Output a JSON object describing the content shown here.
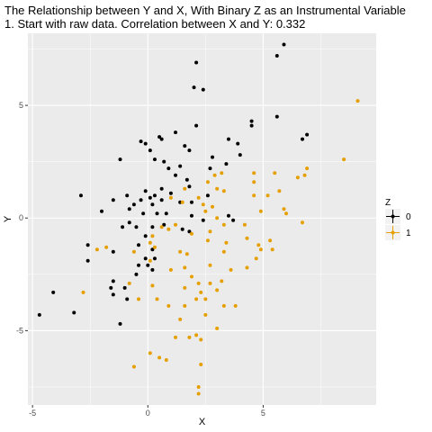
{
  "chart_data": {
    "type": "scatter",
    "title": "The Relationship between Y and X, With Binary Z as an Instrumental Variable",
    "subtitle": "1. Start with raw data. Correlation between X and Y: 0.332",
    "xlabel": "X",
    "ylabel": "Y",
    "xlim": [
      -5.2,
      9.9
    ],
    "ylim": [
      -8.3,
      8.2
    ],
    "xticks": [
      -5,
      0,
      5
    ],
    "yticks": [
      -5,
      0,
      5
    ],
    "grid": true,
    "legend": {
      "title": "Z",
      "position": "right"
    },
    "series": [
      {
        "name": "0",
        "color": "#000000",
        "points": [
          [
            5.9,
            7.7
          ],
          [
            5.6,
            7.2
          ],
          [
            2.1,
            6.9
          ],
          [
            2.0,
            5.8
          ],
          [
            2.4,
            5.7
          ],
          [
            5.6,
            4.5
          ],
          [
            4.5,
            4.3
          ],
          [
            4.5,
            4.1
          ],
          [
            6.9,
            3.7
          ],
          [
            6.7,
            3.5
          ],
          [
            2.1,
            4.1
          ],
          [
            1.2,
            3.8
          ],
          [
            0.5,
            3.6
          ],
          [
            0.6,
            3.5
          ],
          [
            -0.3,
            3.4
          ],
          [
            -0.1,
            3.3
          ],
          [
            3.5,
            3.5
          ],
          [
            3.9,
            3.3
          ],
          [
            1.6,
            3.2
          ],
          [
            4.0,
            2.8
          ],
          [
            1.8,
            3.0
          ],
          [
            0.1,
            3.0
          ],
          [
            0.3,
            2.6
          ],
          [
            -1.2,
            2.6
          ],
          [
            0.7,
            2.5
          ],
          [
            2.8,
            2.7
          ],
          [
            3.4,
            2.4
          ],
          [
            1.4,
            2.3
          ],
          [
            0.9,
            2.2
          ],
          [
            2.7,
            2.2
          ],
          [
            1.2,
            1.9
          ],
          [
            1.7,
            1.7
          ],
          [
            1.8,
            1.4
          ],
          [
            0.6,
            1.3
          ],
          [
            -2.9,
            1.0
          ],
          [
            -0.1,
            1.2
          ],
          [
            1.0,
            1.1
          ],
          [
            -0.9,
            1.0
          ],
          [
            2.6,
            1.0
          ],
          [
            0.3,
            1.0
          ],
          [
            0.1,
            0.9
          ],
          [
            -1.5,
            0.8
          ],
          [
            -0.3,
            0.8
          ],
          [
            0.6,
            0.8
          ],
          [
            1.4,
            0.7
          ],
          [
            1.9,
            0.7
          ],
          [
            0.2,
            0.6
          ],
          [
            -0.6,
            0.6
          ],
          [
            -0.8,
            0.4
          ],
          [
            -2.0,
            0.3
          ],
          [
            0.8,
            0.2
          ],
          [
            0.4,
            0.2
          ],
          [
            -0.2,
            0.2
          ],
          [
            1.9,
            0.1
          ],
          [
            3.5,
            0.1
          ],
          [
            3.7,
            -0.1
          ],
          [
            2.4,
            -0.1
          ],
          [
            0.7,
            -0.3
          ],
          [
            -0.8,
            -0.2
          ],
          [
            -1.1,
            -0.4
          ],
          [
            -0.5,
            -0.4
          ],
          [
            0.2,
            -0.4
          ],
          [
            1.5,
            -0.5
          ],
          [
            1.8,
            -0.6
          ],
          [
            -0.1,
            -0.8
          ],
          [
            -2.6,
            -1.2
          ],
          [
            -0.4,
            -1.2
          ],
          [
            0.2,
            -1.4
          ],
          [
            -1.5,
            -1.5
          ],
          [
            0.3,
            -1.8
          ],
          [
            -0.1,
            -1.8
          ],
          [
            -2.6,
            -1.9
          ],
          [
            -0.4,
            -2.1
          ],
          [
            0.0,
            -2.1
          ],
          [
            0.2,
            -2.3
          ],
          [
            -0.5,
            -2.5
          ],
          [
            -1.5,
            -2.8
          ],
          [
            -1.6,
            -3.1
          ],
          [
            -1.0,
            -3.1
          ],
          [
            -1.5,
            -3.4
          ],
          [
            -0.9,
            -3.6
          ],
          [
            -4.1,
            -3.3
          ],
          [
            -3.2,
            -4.2
          ],
          [
            -4.7,
            -4.3
          ],
          [
            -1.2,
            -4.7
          ]
        ]
      },
      {
        "name": "1",
        "color": "#E69F00",
        "points": [
          [
            9.1,
            5.2
          ],
          [
            8.5,
            2.6
          ],
          [
            6.9,
            2.2
          ],
          [
            6.8,
            1.9
          ],
          [
            6.5,
            1.8
          ],
          [
            5.5,
            2.0
          ],
          [
            4.6,
            2.0
          ],
          [
            4.6,
            1.6
          ],
          [
            5.7,
            1.2
          ],
          [
            5.2,
            1.0
          ],
          [
            4.6,
            1.0
          ],
          [
            5.9,
            0.4
          ],
          [
            6.0,
            0.2
          ],
          [
            4.9,
            0.3
          ],
          [
            6.7,
            -0.2
          ],
          [
            3.2,
            2.0
          ],
          [
            2.9,
            1.9
          ],
          [
            2.6,
            1.6
          ],
          [
            3.0,
            1.3
          ],
          [
            3.3,
            1.2
          ],
          [
            1.6,
            1.3
          ],
          [
            1.0,
            0.9
          ],
          [
            1.5,
            0.7
          ],
          [
            2.2,
            0.9
          ],
          [
            2.4,
            0.6
          ],
          [
            2.8,
            0.5
          ],
          [
            2.5,
            0.3
          ],
          [
            3.0,
            0.0
          ],
          [
            3.3,
            -0.3
          ],
          [
            0.6,
            -0.4
          ],
          [
            1.2,
            -0.3
          ],
          [
            4.2,
            -0.3
          ],
          [
            0.2,
            -0.8
          ],
          [
            0.9,
            -0.5
          ],
          [
            1.9,
            -0.7
          ],
          [
            2.7,
            -0.6
          ],
          [
            4.3,
            -0.9
          ],
          [
            2.6,
            -1.0
          ],
          [
            3.4,
            -1.1
          ],
          [
            3.3,
            -1.5
          ],
          [
            5.3,
            -1.0
          ],
          [
            4.8,
            -1.2
          ],
          [
            4.9,
            -1.4
          ],
          [
            5.4,
            -1.4
          ],
          [
            4.7,
            -1.8
          ],
          [
            4.3,
            -2.2
          ],
          [
            3.6,
            -2.3
          ],
          [
            2.7,
            -2.1
          ],
          [
            1.7,
            -1.6
          ],
          [
            1.4,
            -1.5
          ],
          [
            0.3,
            -1.3
          ],
          [
            0.1,
            -1.1
          ],
          [
            -0.6,
            -1.5
          ],
          [
            -1.8,
            -1.3
          ],
          [
            -2.2,
            -1.4
          ],
          [
            0.1,
            -1.9
          ],
          [
            1.0,
            -2.3
          ],
          [
            1.6,
            -2.2
          ],
          [
            1.9,
            -2.6
          ],
          [
            3.2,
            -2.8
          ],
          [
            2.2,
            -2.9
          ],
          [
            2.7,
            -2.9
          ],
          [
            3.0,
            -3.2
          ],
          [
            2.3,
            -3.3
          ],
          [
            1.6,
            -3.1
          ],
          [
            0.2,
            -3.0
          ],
          [
            -0.8,
            -2.9
          ],
          [
            0.4,
            -3.6
          ],
          [
            -0.4,
            -3.6
          ],
          [
            2.1,
            -3.6
          ],
          [
            2.5,
            -3.6
          ],
          [
            3.3,
            -3.9
          ],
          [
            3.8,
            -3.9
          ],
          [
            2.5,
            -4.3
          ],
          [
            1.6,
            -3.9
          ],
          [
            0.9,
            -3.9
          ],
          [
            1.4,
            -4.5
          ],
          [
            3.0,
            -4.9
          ],
          [
            2.1,
            -5.2
          ],
          [
            1.8,
            -5.3
          ],
          [
            1.2,
            -5.3
          ],
          [
            2.3,
            -5.4
          ],
          [
            0.5,
            -6.2
          ],
          [
            0.8,
            -6.3
          ],
          [
            0.1,
            -6.0
          ],
          [
            2.3,
            -6.5
          ],
          [
            -0.6,
            -6.6
          ],
          [
            2.2,
            -7.5
          ],
          [
            2.2,
            -7.8
          ],
          [
            -2.8,
            -3.3
          ]
        ]
      }
    ]
  }
}
